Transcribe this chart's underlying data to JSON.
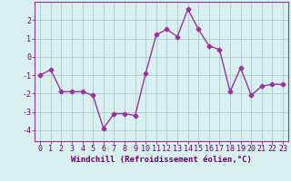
{
  "x": [
    0,
    1,
    2,
    3,
    4,
    5,
    6,
    7,
    8,
    9,
    10,
    11,
    12,
    13,
    14,
    15,
    16,
    17,
    18,
    19,
    20,
    21,
    22,
    23
  ],
  "y": [
    -1.0,
    -0.7,
    -1.9,
    -1.9,
    -1.9,
    -2.1,
    -3.9,
    -3.1,
    -3.1,
    -3.2,
    -0.9,
    1.2,
    1.5,
    1.1,
    2.6,
    1.5,
    0.6,
    0.4,
    -1.9,
    -0.6,
    -2.1,
    -1.6,
    -1.5,
    -1.5
  ],
  "line_color": "#993399",
  "marker": "D",
  "marker_size": 2.5,
  "bg_color": "#d8f0f0",
  "grid_color": "#aacccc",
  "xlabel": "Windchill (Refroidissement éolien,°C)",
  "xlim": [
    -0.5,
    23.5
  ],
  "ylim": [
    -4.6,
    3.0
  ],
  "yticks": [
    -4,
    -3,
    -2,
    -1,
    0,
    1,
    2
  ],
  "xtick_labels": [
    "0",
    "1",
    "2",
    "3",
    "4",
    "5",
    "6",
    "7",
    "8",
    "9",
    "10",
    "11",
    "12",
    "13",
    "14",
    "15",
    "16",
    "17",
    "18",
    "19",
    "20",
    "21",
    "22",
    "23"
  ],
  "linewidth": 1.0,
  "font_color": "#660066",
  "xlabel_fontsize": 6.5,
  "tick_fontsize": 6,
  "spine_color": "#993399"
}
